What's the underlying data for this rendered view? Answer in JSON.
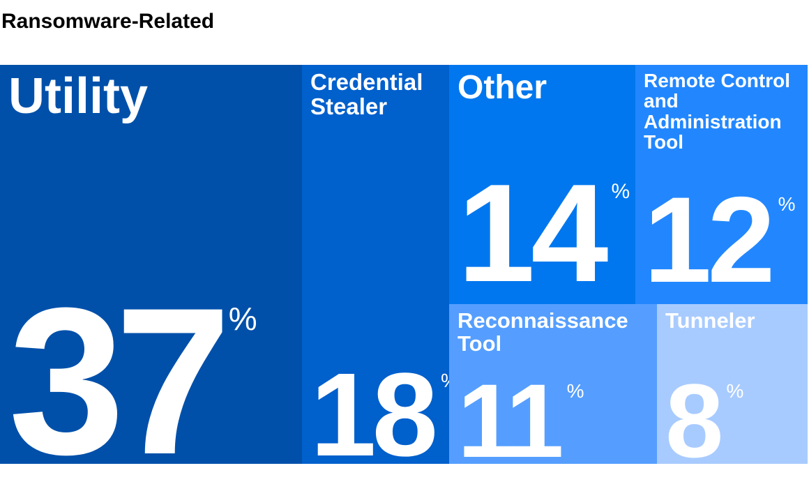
{
  "title": "Ransomware-Related",
  "chart_data": {
    "type": "treemap",
    "title": "Ransomware-Related",
    "unit": "%",
    "items": [
      {
        "label": "Utility",
        "value": 37,
        "color": "#0050AA"
      },
      {
        "label": "Credential Stealer",
        "value": 18,
        "color": "#0060CC"
      },
      {
        "label": "Other",
        "value": 14,
        "color": "#0077EE"
      },
      {
        "label": "Remote Control and Administration Tool",
        "value": 12,
        "color": "#2287FF"
      },
      {
        "label": "Reconnaissance Tool",
        "value": 11,
        "color": "#559EFF"
      },
      {
        "label": "Tunneler",
        "value": 8,
        "color": "#A8CBFF"
      }
    ]
  }
}
